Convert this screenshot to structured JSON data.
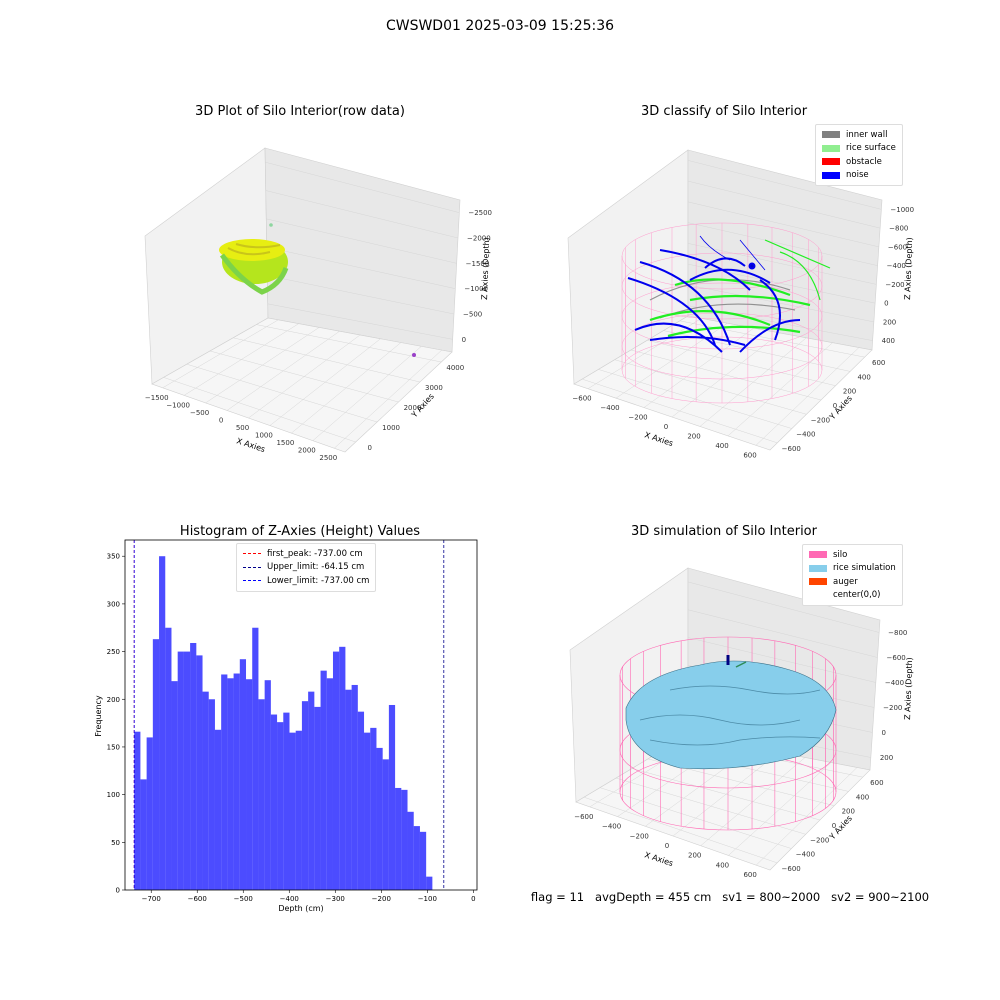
{
  "suptitle": "CWSWD01 2025-03-09 15:25:36",
  "footer_text": "flag = 11   avgDepth = 455 cm   sv1 = 800~2000   sv2 = 900~2100",
  "chart_data": [
    {
      "type": "scatter",
      "title": "3D Plot of Silo Interior(row data)",
      "xlabel": "X Axies",
      "ylabel": "Y Axies",
      "zlabel": "Z Axies (Depth)",
      "x_ticks": [
        "−1500",
        "−1000",
        "−500",
        "0",
        "500",
        "1000",
        "1500",
        "2000",
        "2500"
      ],
      "y_ticks": [
        "0",
        "1000",
        "2000",
        "3000",
        "4000"
      ],
      "z_ticks": [
        "0",
        "−500",
        "−1000",
        "−1500",
        "−2000",
        "−2500"
      ],
      "xlim": [
        -1700,
        2600
      ],
      "ylim": [
        -200,
        4200
      ],
      "zlim": [
        -2700,
        100
      ]
    },
    {
      "type": "scatter",
      "title": "3D classify of Silo Interior",
      "xlabel": "X Axies",
      "ylabel": "Y Axies",
      "zlabel": "Z Axies (Depth)",
      "x_ticks": [
        "−600",
        "−400",
        "−200",
        "0",
        "200",
        "400",
        "600"
      ],
      "y_ticks": [
        "−600",
        "−400",
        "−200",
        "0",
        "200",
        "400",
        "600"
      ],
      "z_ticks": [
        "400",
        "200",
        "0",
        "−200",
        "−400",
        "−600",
        "−800",
        "−1000"
      ],
      "legend": [
        {
          "label": "inner wall",
          "color": "#808080"
        },
        {
          "label": "rice surface",
          "color": "#90ee90"
        },
        {
          "label": "obstacle",
          "color": "#ff0000"
        },
        {
          "label": "noise",
          "color": "#0000ff"
        }
      ]
    },
    {
      "type": "bar",
      "title": "Histogram of Z-Axies (Height) Values",
      "xlabel": "Depth (cm)",
      "ylabel": "Frequency",
      "x_ticks": [
        "−700",
        "−600",
        "−500",
        "−400",
        "−300",
        "−200",
        "−100",
        "0"
      ],
      "y_ticks": [
        "0",
        "50",
        "100",
        "150",
        "200",
        "250",
        "300",
        "350"
      ],
      "xlim": [
        -757,
        8
      ],
      "ylim": [
        0,
        367
      ],
      "bin_start": -737,
      "bin_width": 13.5,
      "values": [
        166,
        116,
        160,
        263,
        350,
        275,
        219,
        250,
        250,
        259,
        246,
        208,
        200,
        168,
        226,
        222,
        227,
        242,
        221,
        275,
        200,
        220,
        184,
        176,
        186,
        165,
        167,
        198,
        208,
        192,
        230,
        222,
        250,
        255,
        210,
        215,
        187,
        165,
        170,
        149,
        137,
        194,
        107,
        105,
        82,
        67,
        61,
        14
      ],
      "bar_color": "#0000ff",
      "vlines": [
        {
          "label": "first_peak: -737.00 cm",
          "x": -737,
          "color": "#ff0000"
        },
        {
          "label": "Upper_limit: -64.15 cm",
          "x": -64.15,
          "color": "#00008b"
        },
        {
          "label": "Lower_limit: -737.00 cm",
          "x": -737,
          "color": "#0000ff"
        }
      ]
    },
    {
      "type": "scatter",
      "title": "3D simulation of Silo Interior",
      "xlabel": "X Axies",
      "ylabel": "Y Axies",
      "zlabel": "Z Axies (Depth)",
      "x_ticks": [
        "−600",
        "−400",
        "−200",
        "0",
        "200",
        "400",
        "600"
      ],
      "y_ticks": [
        "−600",
        "−400",
        "−200",
        "0",
        "200",
        "400",
        "600"
      ],
      "z_ticks": [
        "200",
        "0",
        "−200",
        "−400",
        "−600",
        "−800"
      ],
      "legend": [
        {
          "label": "silo",
          "color": "#ff69b4"
        },
        {
          "label": "rice simulation",
          "color": "#87ceeb"
        },
        {
          "label": "auger",
          "color": "#ff4500"
        },
        {
          "label": "center(0,0)",
          "color": "#ffffff"
        }
      ]
    }
  ]
}
